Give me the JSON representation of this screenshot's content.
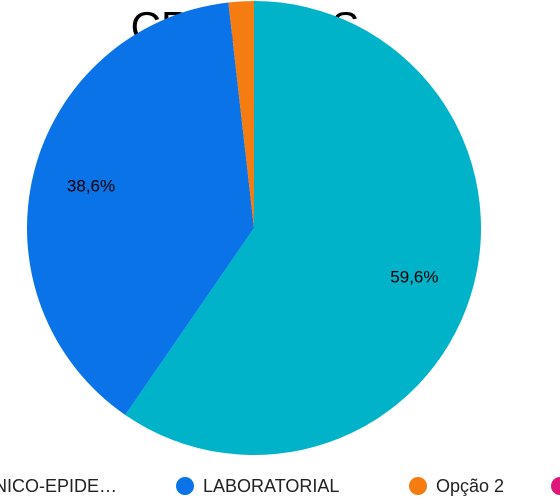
{
  "chart_data": {
    "type": "pie",
    "title": "CRITÉRIOS",
    "categories": [
      "CLÍNICO-EPIDE…",
      "LABORATORIAL",
      "Opção 2",
      null
    ],
    "values": [
      59.6,
      38.6,
      1.8,
      0
    ],
    "value_labels": [
      "59,6%",
      "38,6%",
      null,
      null
    ],
    "colors": [
      "#00b3c9",
      "#0a73e8",
      "#f47c11",
      "#e0177a"
    ],
    "legend": "bottom"
  }
}
